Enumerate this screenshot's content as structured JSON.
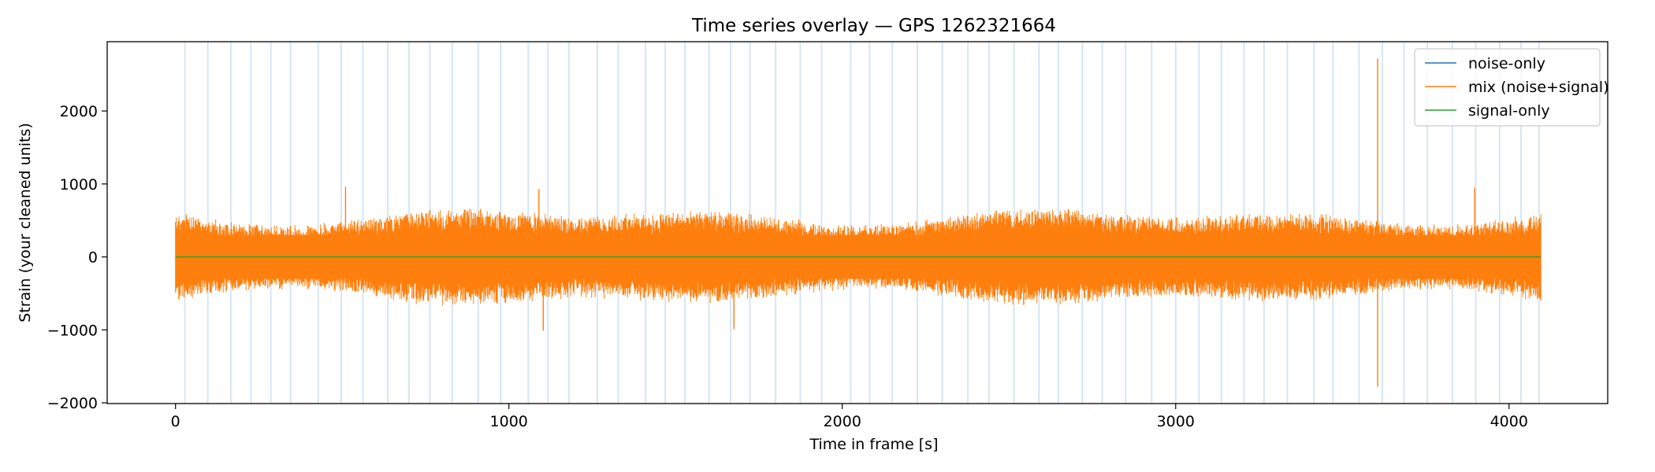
{
  "chart_data": {
    "type": "line",
    "title": "Time series overlay — GPS 1262321664",
    "xlabel": "Time in frame [s]",
    "ylabel": "Strain (your cleaned units)",
    "xlim": [
      -205,
      4296
    ],
    "ylim": [
      -2010,
      2950
    ],
    "xticks": [
      0,
      1000,
      2000,
      3000,
      4000
    ],
    "xtick_labels": [
      "0",
      "1000",
      "2000",
      "3000",
      "4000"
    ],
    "yticks": [
      -2000,
      -1000,
      0,
      1000,
      2000
    ],
    "ytick_labels": [
      "−2000",
      "−1000",
      "0",
      "1000",
      "2000"
    ],
    "grid": false,
    "legend_position": "top-right",
    "colors": {
      "noise": "#1f77b4",
      "mix": "#ff7f0e",
      "signal": "#2ca02c",
      "segment_marker": "#d6e6f2"
    },
    "series": [
      {
        "name": "noise-only",
        "color": "#1f77b4",
        "description_range": [
          0,
          4096
        ],
        "amplitude_typical": 600
      },
      {
        "name": "mix (noise+signal)",
        "color": "#ff7f0e",
        "x_range": [
          0,
          4096
        ],
        "amplitude_typical": 600,
        "envelope_peaks": [
          {
            "x": 510,
            "y": 960
          },
          {
            "x": 1090,
            "y": 930
          },
          {
            "x": 1103,
            "y": -1010
          },
          {
            "x": 1675,
            "y": -990
          },
          {
            "x": 3897,
            "y": 950
          },
          {
            "x": 3606,
            "y": 2720
          },
          {
            "x": 3606,
            "y": -1780
          }
        ]
      },
      {
        "name": "signal-only",
        "color": "#2ca02c",
        "x": [
          0,
          4096
        ],
        "y": [
          0,
          0
        ]
      }
    ],
    "segment_marker_x": [
      28,
      97,
      166,
      226,
      286,
      345,
      428,
      497,
      562,
      637,
      700,
      763,
      830,
      908,
      975,
      1058,
      1117,
      1180,
      1265,
      1328,
      1410,
      1469,
      1528,
      1600,
      1665,
      1723,
      1800,
      1874,
      1938,
      2025,
      2082,
      2150,
      2225,
      2300,
      2377,
      2440,
      2515,
      2590,
      2648,
      2720,
      2780,
      2850,
      2928,
      3000,
      3070,
      3137,
      3205,
      3265,
      3335,
      3415,
      3472,
      3550,
      3620,
      3685,
      3755,
      3830,
      3900,
      3972,
      4036,
      4090
    ]
  }
}
